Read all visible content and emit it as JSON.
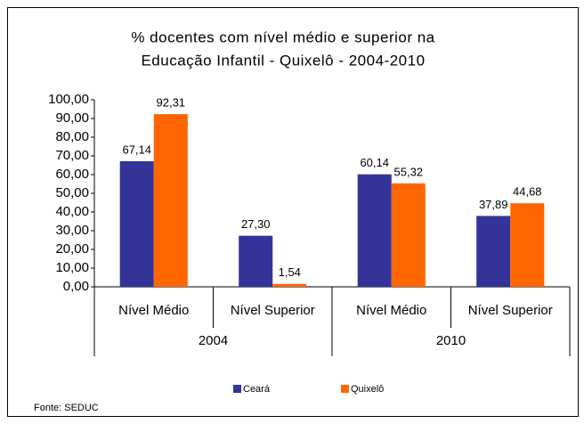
{
  "chart_data": {
    "type": "bar",
    "title": [
      "% docentes com nível médio e superior na",
      "Educação Infantil - Quixelô  - 2004-2010"
    ],
    "categories": [
      "Nível Médio",
      "Nível Superior",
      "Nível Médio",
      "Nível Superior"
    ],
    "groups": [
      {
        "label": "2004",
        "size": 2
      },
      {
        "label": "2010",
        "size": 2
      }
    ],
    "series": [
      {
        "name": "Ceará",
        "color": "#333399",
        "values": [
          67.14,
          27.3,
          60.14,
          37.89
        ],
        "value_labels": [
          "67,14",
          "27,30",
          "60,14",
          "37,89"
        ]
      },
      {
        "name": "Quixelô",
        "color": "#ff6600",
        "values": [
          92.31,
          1.54,
          55.32,
          44.68
        ],
        "value_labels": [
          "92,31",
          "1,54",
          "55,32",
          "44,68"
        ]
      }
    ],
    "ylim": [
      0,
      100
    ],
    "yticks": [
      {
        "value": 0,
        "label": "0,00"
      },
      {
        "value": 10,
        "label": "10,00"
      },
      {
        "value": 20,
        "label": "20,00"
      },
      {
        "value": 30,
        "label": "30,00"
      },
      {
        "value": 40,
        "label": "40,00"
      },
      {
        "value": 50,
        "label": "50,00"
      },
      {
        "value": 60,
        "label": "60,00"
      },
      {
        "value": 70,
        "label": "70,00"
      },
      {
        "value": 80,
        "label": "80,00"
      },
      {
        "value": 90,
        "label": "90,00"
      },
      {
        "value": 100,
        "label": "100,00"
      }
    ],
    "legend": "bottom",
    "source": "Fonte: SEDUC"
  }
}
